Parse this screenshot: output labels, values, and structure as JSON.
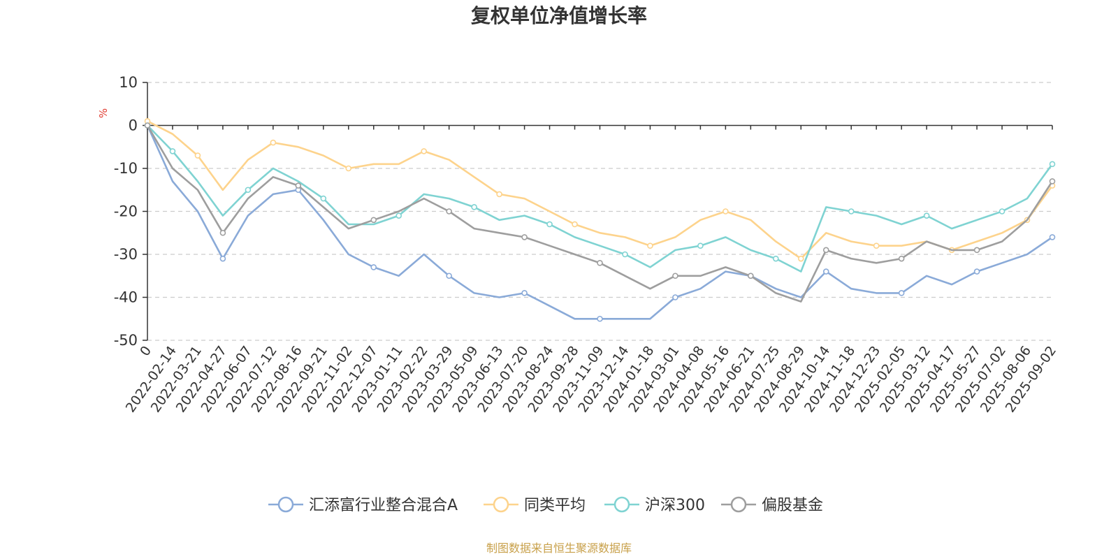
{
  "chart_data": {
    "type": "line",
    "title": "复权单位净值增长率",
    "ylabel": "%",
    "ylim": [
      -50,
      10
    ],
    "yticks": [
      10,
      0,
      -10,
      -20,
      -30,
      -40,
      -50
    ],
    "grid": true,
    "legend_position": "bottom",
    "source": "制图数据来自恒生聚源数据库",
    "x": [
      "0",
      "2022-02-14",
      "2022-03-21",
      "2022-04-27",
      "2022-06-07",
      "2022-07-12",
      "2022-08-16",
      "2022-09-21",
      "2022-11-02",
      "2022-12-07",
      "2023-01-11",
      "2023-02-22",
      "2023-03-29",
      "2023-05-09",
      "2023-06-13",
      "2023-07-20",
      "2023-08-24",
      "2023-09-28",
      "2023-11-09",
      "2023-12-14",
      "2024-01-18",
      "2024-03-01",
      "2024-04-08",
      "2024-05-16",
      "2024-06-21",
      "2024-07-25",
      "2024-08-29",
      "2024-10-14",
      "2024-11-18",
      "2024-12-23",
      "2025-02-05",
      "2025-03-12",
      "2025-04-17",
      "2025-05-27",
      "2025-07-02",
      "2025-08-06",
      "2025-09-02"
    ],
    "series": [
      {
        "name": "汇添富行业整合混合A",
        "color": "#8aaad8",
        "values": [
          0,
          -13,
          -20,
          -31,
          -21,
          -16,
          -15,
          -22,
          -30,
          -33,
          -35,
          -30,
          -35,
          -39,
          -40,
          -39,
          -42,
          -45,
          -45,
          -45,
          -45,
          -40,
          -38,
          -34,
          -35,
          -38,
          -40,
          -34,
          -38,
          -39,
          -39,
          -35,
          -37,
          -34,
          -32,
          -30,
          -26
        ]
      },
      {
        "name": "同类平均",
        "color": "#fdd38c",
        "values": [
          1,
          -2,
          -7,
          -15,
          -8,
          -4,
          -5,
          -7,
          -10,
          -9,
          -9,
          -6,
          -8,
          -12,
          -16,
          -17,
          -20,
          -23,
          -25,
          -26,
          -28,
          -26,
          -22,
          -20,
          -22,
          -27,
          -31,
          -25,
          -27,
          -28,
          -28,
          -27,
          -29,
          -27,
          -25,
          -22,
          -14
        ]
      },
      {
        "name": "沪深300",
        "color": "#7fd3d2",
        "values": [
          0,
          -6,
          -13,
          -21,
          -15,
          -10,
          -13,
          -17,
          -23,
          -23,
          -21,
          -16,
          -17,
          -19,
          -22,
          -21,
          -23,
          -26,
          -28,
          -30,
          -33,
          -29,
          -28,
          -26,
          -29,
          -31,
          -34,
          -19,
          -20,
          -21,
          -23,
          -21,
          -24,
          -22,
          -20,
          -17,
          -9
        ]
      },
      {
        "name": "偏股基金",
        "color": "#9e9e9e",
        "values": [
          0,
          -10,
          -15,
          -25,
          -17,
          -12,
          -14,
          -19,
          -24,
          -22,
          -20,
          -17,
          -20,
          -24,
          -25,
          -26,
          -28,
          -30,
          -32,
          -35,
          -38,
          -35,
          -35,
          -33,
          -35,
          -39,
          -41,
          -29,
          -31,
          -32,
          -31,
          -27,
          -29,
          -29,
          -27,
          -22,
          -13
        ]
      }
    ]
  }
}
